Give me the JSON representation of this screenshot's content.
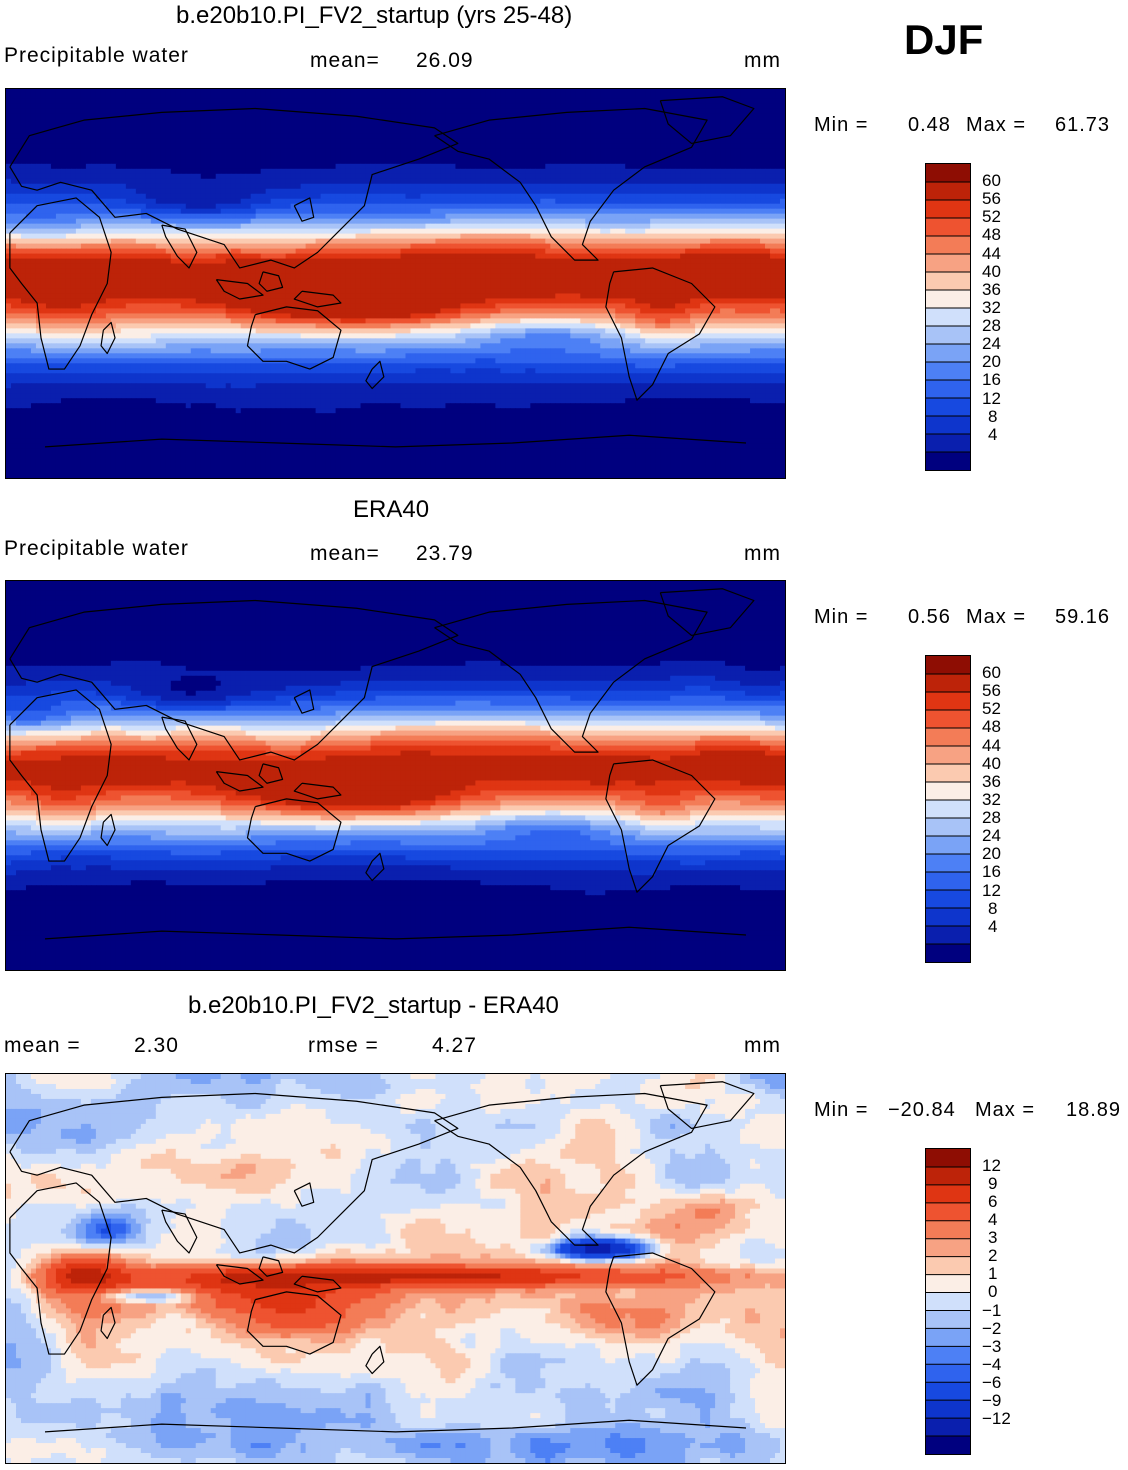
{
  "season": "DJF",
  "panels": [
    {
      "id": "model",
      "title": "b.e20b10.PI_FV2_startup (yrs 25-48)",
      "left_label": "Precipitable  water",
      "stat1": "mean=",
      "stat1_value": "26.09",
      "units": "mm",
      "min_label": "Min  =",
      "min_value": "0.48",
      "max_label": "Max  =",
      "max_value": "61.73"
    },
    {
      "id": "obs",
      "title": "ERA40",
      "left_label": "Precipitable  water",
      "stat1": "mean=",
      "stat1_value": "23.79",
      "units": "mm",
      "min_label": "Min  =",
      "min_value": "0.56",
      "max_label": "Max  =",
      "max_value": "59.16"
    },
    {
      "id": "diff",
      "title": "b.e20b10.PI_FV2_startup - ERA40",
      "left_label": "mean  =",
      "left_value": "2.30",
      "stat1": "rmse  =",
      "stat1_value": "4.27",
      "units": "mm",
      "min_label": "Min  =",
      "min_value": "−20.84",
      "max_label": "Max  =",
      "max_value": "18.89"
    }
  ],
  "chart_data": [
    {
      "type": "heatmap",
      "title": "b.e20b10.PI_FV2_startup (yrs 25-48)",
      "variable": "Precipitable water",
      "units": "mm",
      "mean": 26.09,
      "min": 0.48,
      "max": 61.73,
      "colorbar_levels": [
        4,
        8,
        12,
        16,
        20,
        24,
        28,
        32,
        36,
        40,
        44,
        48,
        52,
        56,
        60
      ],
      "colorbar_labels": [
        "60",
        "56",
        "52",
        "48",
        "44",
        "40",
        "36",
        "32",
        "28",
        "24",
        "20",
        "16",
        "12",
        "8",
        "4"
      ],
      "colors": [
        "#00007f",
        "#0a1fae",
        "#0e35cc",
        "#1749e0",
        "#2f63ee",
        "#4d80f5",
        "#7aa3f6",
        "#a8c3f7",
        "#d0e0fb",
        "#fbeee6",
        "#fbcab0",
        "#f7a283",
        "#f37c57",
        "#ee5330",
        "#df3513",
        "#bd2309",
        "#8e0d03"
      ]
    },
    {
      "type": "heatmap",
      "title": "ERA40",
      "variable": "Precipitable water",
      "units": "mm",
      "mean": 23.79,
      "min": 0.56,
      "max": 59.16,
      "colorbar_levels": [
        4,
        8,
        12,
        16,
        20,
        24,
        28,
        32,
        36,
        40,
        44,
        48,
        52,
        56,
        60
      ],
      "colorbar_labels": [
        "60",
        "56",
        "52",
        "48",
        "44",
        "40",
        "36",
        "32",
        "28",
        "24",
        "20",
        "16",
        "12",
        "8",
        "4"
      ],
      "colors": [
        "#00007f",
        "#0a1fae",
        "#0e35cc",
        "#1749e0",
        "#2f63ee",
        "#4d80f5",
        "#7aa3f6",
        "#a8c3f7",
        "#d0e0fb",
        "#fbeee6",
        "#fbcab0",
        "#f7a283",
        "#f37c57",
        "#ee5330",
        "#df3513",
        "#bd2309",
        "#8e0d03"
      ]
    },
    {
      "type": "heatmap",
      "title": "b.e20b10.PI_FV2_startup - ERA40",
      "units": "mm",
      "mean": 2.3,
      "rmse": 4.27,
      "min": -20.84,
      "max": 18.89,
      "colorbar_levels": [
        -12,
        -9,
        -6,
        -4,
        -3,
        -2,
        -1,
        0,
        1,
        2,
        3,
        4,
        6,
        9,
        12
      ],
      "colorbar_labels": [
        "12",
        "9",
        "6",
        "4",
        "3",
        "2",
        "1",
        "0",
        "−1",
        "−2",
        "−3",
        "−4",
        "−6",
        "−9",
        "−12"
      ],
      "colors": [
        "#00007f",
        "#0a1fae",
        "#0e35cc",
        "#1749e0",
        "#2f63ee",
        "#4d80f5",
        "#7aa3f6",
        "#a8c3f7",
        "#d0e0fb",
        "#fbeee6",
        "#fbcab0",
        "#f7a283",
        "#f37c57",
        "#ee5330",
        "#df3513",
        "#bd2309",
        "#8e0d03"
      ]
    }
  ]
}
